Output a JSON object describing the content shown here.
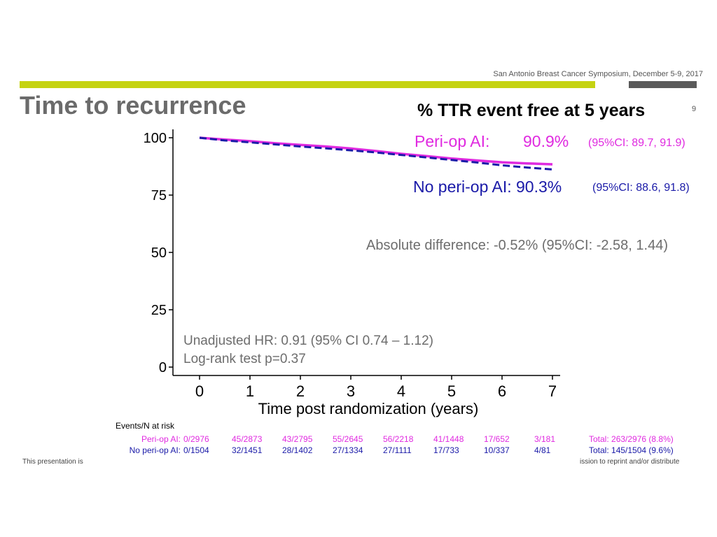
{
  "slide": {
    "conference": "San Antonio Breast Cancer Symposium, December 5-9, 2017",
    "title": "Time to recurrence",
    "page_number": "9",
    "footer_left": "This presentation is",
    "footer_right": "ission to reprint and/or distribute",
    "accent_green": "#c5d312",
    "accent_gray": "#5a5a5a"
  },
  "summary": {
    "heading": "% TTR event free at 5 years",
    "periop_label": "Peri-op AI:",
    "periop_value": "90.9%",
    "periop_ci": "(95%CI: 89.7, 91.9)",
    "noperiop_label": "No peri-op AI: 90.3%",
    "noperiop_ci": "(95%CI: 88.6, 91.8)",
    "absolute_difference": "Absolute difference: -0.52% (95%CI: -2.58, 1.44)"
  },
  "chart_data": {
    "type": "line",
    "title": "",
    "xlabel": "Time post randomization (years)",
    "ylabel": "",
    "xlim": [
      0,
      7
    ],
    "ylim": [
      0,
      100
    ],
    "x_ticks": [
      "0",
      "1",
      "2",
      "3",
      "4",
      "5",
      "6",
      "7"
    ],
    "y_ticks": [
      "0",
      "25",
      "50",
      "75",
      "100"
    ],
    "grid": false,
    "series": [
      {
        "name": "Peri-op AI",
        "color": "#e02ae0",
        "style": "solid",
        "x": [
          0,
          0.5,
          1,
          1.5,
          2,
          2.5,
          3,
          3.5,
          4,
          4.5,
          5,
          5.5,
          6,
          6.5,
          7
        ],
        "y": [
          100,
          99.2,
          98.5,
          97.6,
          96.9,
          96.2,
          95.3,
          94.2,
          93.0,
          92.0,
          90.9,
          90.1,
          89.3,
          88.8,
          88.4
        ]
      },
      {
        "name": "No peri-op AI",
        "color": "#1a1aa8",
        "style": "dashed",
        "x": [
          0,
          0.5,
          1,
          1.5,
          2,
          2.5,
          3,
          3.5,
          4,
          4.5,
          5,
          5.5,
          6,
          6.5,
          7
        ],
        "y": [
          100,
          98.8,
          98.0,
          97.1,
          96.2,
          95.4,
          94.5,
          93.6,
          92.5,
          91.4,
          90.3,
          89.2,
          88.0,
          87.0,
          86.2
        ]
      }
    ],
    "annotations": [
      "Unadjusted HR: 0.91 (95% CI 0.74 – 1.12)",
      "Log-rank test p=0.37"
    ]
  },
  "risk_table": {
    "title": "Events/N at risk",
    "rows": [
      {
        "label": "Peri-op AI:",
        "color": "#e02ae0",
        "cells": [
          "0/2976",
          "45/2873",
          "43/2795",
          "55/2645",
          "56/2218",
          "41/1448",
          "17/652",
          "3/181"
        ],
        "total": "Total: 263/2976 (8.8%)"
      },
      {
        "label": "No peri-op AI:",
        "color": "#1a1aa8",
        "cells": [
          "0/1504",
          "32/1451",
          "28/1402",
          "27/1334",
          "27/1111",
          "17/733",
          "10/337",
          "4/81"
        ],
        "total": "Total: 145/1504 (9.6%)"
      }
    ]
  }
}
